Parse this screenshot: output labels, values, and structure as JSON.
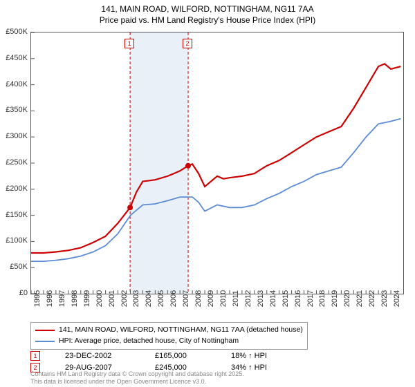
{
  "title_line1": "141, MAIN ROAD, WILFORD, NOTTINGHAM, NG11 7AA",
  "title_line2": "Price paid vs. HM Land Registry's House Price Index (HPI)",
  "chart": {
    "type": "line",
    "x_years": [
      1995,
      1996,
      1997,
      1998,
      1999,
      2000,
      2001,
      2002,
      2003,
      2004,
      2005,
      2006,
      2007,
      2008,
      2009,
      2010,
      2011,
      2012,
      2013,
      2014,
      2015,
      2016,
      2017,
      2018,
      2019,
      2020,
      2021,
      2022,
      2023,
      2024
    ],
    "xlim": [
      1995,
      2025
    ],
    "ylim": [
      0,
      500000
    ],
    "ytick_step": 50000,
    "y_tick_labels": [
      "£0",
      "£50K",
      "£100K",
      "£150K",
      "£200K",
      "£250K",
      "£300K",
      "£350K",
      "£400K",
      "£450K",
      "£500K"
    ],
    "background_color": "#ffffff",
    "axis_color": "#555555",
    "grid_on": false,
    "series_property": {
      "label": "141, MAIN ROAD, WILFORD, NOTTINGHAM, NG11 7AA (detached house)",
      "color": "#cc0000",
      "line_width": 2.2,
      "data": [
        [
          1995,
          78000
        ],
        [
          1996,
          78000
        ],
        [
          1997,
          80000
        ],
        [
          1998,
          83000
        ],
        [
          1999,
          88000
        ],
        [
          2000,
          98000
        ],
        [
          2001,
          110000
        ],
        [
          2002,
          135000
        ],
        [
          2002.98,
          165000
        ],
        [
          2003.5,
          195000
        ],
        [
          2004,
          215000
        ],
        [
          2005,
          218000
        ],
        [
          2006,
          225000
        ],
        [
          2007,
          235000
        ],
        [
          2007.66,
          245000
        ],
        [
          2008,
          248000
        ],
        [
          2008.5,
          230000
        ],
        [
          2009,
          205000
        ],
        [
          2010,
          225000
        ],
        [
          2010.5,
          220000
        ],
        [
          2011,
          222000
        ],
        [
          2012,
          225000
        ],
        [
          2013,
          230000
        ],
        [
          2014,
          245000
        ],
        [
          2015,
          255000
        ],
        [
          2016,
          270000
        ],
        [
          2017,
          285000
        ],
        [
          2018,
          300000
        ],
        [
          2019,
          310000
        ],
        [
          2020,
          320000
        ],
        [
          2021,
          355000
        ],
        [
          2022,
          395000
        ],
        [
          2023,
          435000
        ],
        [
          2023.5,
          440000
        ],
        [
          2024,
          430000
        ],
        [
          2024.8,
          435000
        ]
      ]
    },
    "series_hpi": {
      "label": "HPI: Average price, detached house, City of Nottingham",
      "color": "#5b8bd4",
      "line_width": 1.8,
      "data": [
        [
          1995,
          62000
        ],
        [
          1996,
          62000
        ],
        [
          1997,
          64000
        ],
        [
          1998,
          67000
        ],
        [
          1999,
          72000
        ],
        [
          2000,
          80000
        ],
        [
          2001,
          92000
        ],
        [
          2002,
          115000
        ],
        [
          2003,
          150000
        ],
        [
          2004,
          170000
        ],
        [
          2005,
          172000
        ],
        [
          2006,
          178000
        ],
        [
          2007,
          185000
        ],
        [
          2008,
          185000
        ],
        [
          2008.5,
          175000
        ],
        [
          2009,
          158000
        ],
        [
          2010,
          170000
        ],
        [
          2011,
          165000
        ],
        [
          2012,
          165000
        ],
        [
          2013,
          170000
        ],
        [
          2014,
          182000
        ],
        [
          2015,
          192000
        ],
        [
          2016,
          205000
        ],
        [
          2017,
          215000
        ],
        [
          2018,
          228000
        ],
        [
          2019,
          235000
        ],
        [
          2020,
          242000
        ],
        [
          2021,
          270000
        ],
        [
          2022,
          300000
        ],
        [
          2023,
          325000
        ],
        [
          2024,
          330000
        ],
        [
          2024.8,
          335000
        ]
      ]
    },
    "sale_markers": [
      {
        "n": "1",
        "year": 2002.98,
        "price": 165000
      },
      {
        "n": "2",
        "year": 2007.66,
        "price": 245000
      }
    ],
    "sale_band": {
      "start": 2002.98,
      "end": 2007.66,
      "color": "#eaf0f8"
    },
    "sale_line_color": "#cc0000",
    "sale_line_dash": "4,3"
  },
  "events": [
    {
      "n": "1",
      "date": "23-DEC-2002",
      "price": "£165,000",
      "diff": "18% ↑ HPI"
    },
    {
      "n": "2",
      "date": "29-AUG-2007",
      "price": "£245,000",
      "diff": "34% ↑ HPI"
    }
  ],
  "copyright_line1": "Contains HM Land Registry data © Crown copyright and database right 2025.",
  "copyright_line2": "This data is licensed under the Open Government Licence v3.0."
}
